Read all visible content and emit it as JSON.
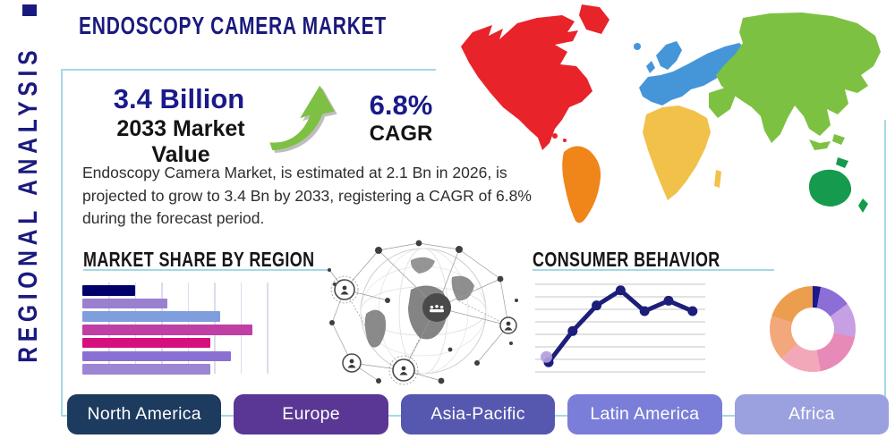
{
  "header": {
    "title": "ENDOSCOPY CAMERA MARKET",
    "sidebar_label": "REGIONAL ANALYSIS"
  },
  "stats": {
    "market_value": "3.4 Billion",
    "market_value_caption": "2033 Market Value",
    "cagr_value": "6.8%",
    "cagr_caption": "CAGR",
    "description": "Endoscopy Camera Market, is estimated at 2.1 Bn in 2026, is projected to grow to 3.4 Bn by 2033, registering a CAGR of 6.8% during the forecast period.",
    "growth_arrow_icon": "up-trend-arrow",
    "growth_arrow_color": "#7ec043"
  },
  "sections": {
    "market_share_title": "MARKET SHARE BY REGION",
    "consumer_behavior_title": "CONSUMER BEHAVIOR"
  },
  "region_buttons": [
    {
      "label": "North America",
      "color": "#1d3a5f"
    },
    {
      "label": "Europe",
      "color": "#5a3795"
    },
    {
      "label": "Asia-Pacific",
      "color": "#5558ae"
    },
    {
      "label": "Latin America",
      "color": "#7b7ed8"
    },
    {
      "label": "Africa",
      "color": "#9ba0de"
    }
  ],
  "chart_data": [
    {
      "type": "bar",
      "title": "MARKET SHARE BY REGION",
      "orientation": "horizontal",
      "axis_labels_visible": false,
      "values": [
        20,
        32,
        52,
        64,
        48,
        56,
        48
      ],
      "colors": [
        "#00006b",
        "#9b7fd1",
        "#7f9ede",
        "#bf3fa5",
        "#d60f7e",
        "#8a70d2",
        "#9d85d4"
      ],
      "xlim": [
        0,
        72
      ],
      "grid": "vertical"
    },
    {
      "type": "line",
      "title": "CONSUMER BEHAVIOR",
      "x": [
        1,
        2,
        3,
        4,
        5,
        6,
        7
      ],
      "values": [
        12,
        45,
        72,
        88,
        66,
        77,
        66
      ],
      "line_color": "#1d1d7a",
      "marker_color": "#1d1d7a",
      "start_marker_color": "#b39dde",
      "ylim": [
        0,
        100
      ],
      "grid": "horizontal",
      "axis_labels_visible": false
    },
    {
      "type": "pie",
      "style": "donut",
      "labels_visible": false,
      "slices": [
        {
          "color": "#1a1a8c",
          "value": 3
        },
        {
          "color": "#8b6fd6",
          "value": 12
        },
        {
          "color": "#c79fe3",
          "value": 13
        },
        {
          "color": "#e88ab8",
          "value": 19
        },
        {
          "color": "#f3a8ba",
          "value": 16
        },
        {
          "color": "#f3a87c",
          "value": 17
        },
        {
          "color": "#eb9f4e",
          "value": 20
        }
      ]
    }
  ],
  "map": {
    "name": "world-map-by-region",
    "regions": [
      {
        "name": "North America",
        "color": "#e8232a"
      },
      {
        "name": "South America",
        "color": "#f08519"
      },
      {
        "name": "Europe",
        "color": "#4596d9"
      },
      {
        "name": "Africa",
        "color": "#f2c14a"
      },
      {
        "name": "Asia",
        "color": "#7dc142"
      },
      {
        "name": "Oceania",
        "color": "#169b4e"
      }
    ]
  },
  "decor": {
    "accent_line_color": "#a5d8e6",
    "globe_graphic": "global-network-globe"
  }
}
